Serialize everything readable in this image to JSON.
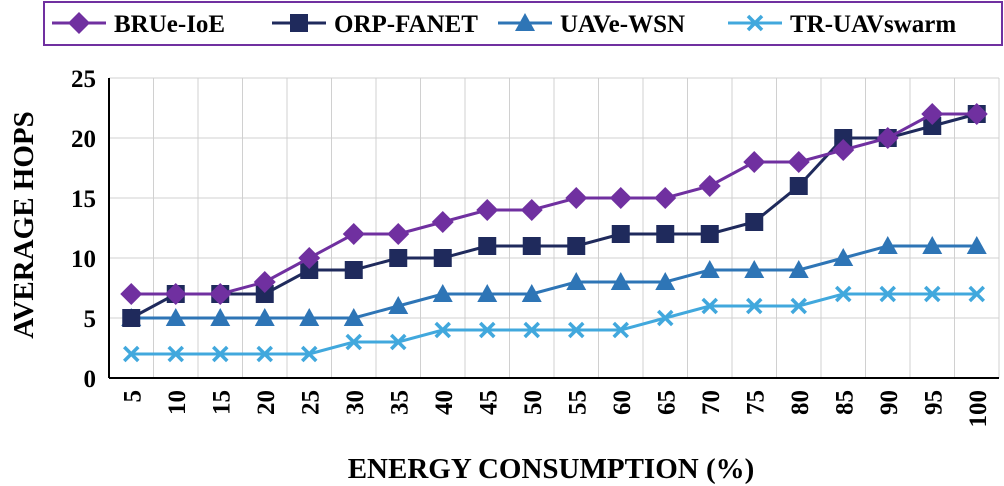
{
  "chart_data": {
    "type": "line",
    "title": "",
    "xlabel": "ENERGY CONSUMPTION (%)",
    "ylabel": "AVERAGE HOPS",
    "categories": [
      "5",
      "10",
      "15",
      "20",
      "25",
      "30",
      "35",
      "40",
      "45",
      "50",
      "55",
      "60",
      "65",
      "70",
      "75",
      "80",
      "85",
      "90",
      "95",
      "100"
    ],
    "ylim": [
      0,
      25
    ],
    "yticks": [
      "0",
      "5",
      "10",
      "15",
      "20",
      "25"
    ],
    "grid": true,
    "legend_position": "top",
    "series": [
      {
        "name": "BRUe-IoE",
        "marker": "diamond",
        "color": "#7030A0",
        "values": [
          7,
          7,
          7,
          8,
          10,
          12,
          12,
          13,
          14,
          14,
          15,
          15,
          15,
          16,
          18,
          18,
          19,
          20,
          22,
          22
        ]
      },
      {
        "name": "ORP-FANET",
        "marker": "square",
        "color": "#1F2A5C",
        "values": [
          5,
          7,
          7,
          7,
          9,
          9,
          10,
          10,
          11,
          11,
          11,
          12,
          12,
          12,
          13,
          16,
          20,
          20,
          21,
          22
        ]
      },
      {
        "name": "UAVe-WSN",
        "marker": "triangle",
        "color": "#2E75B6",
        "values": [
          5,
          5,
          5,
          5,
          5,
          5,
          6,
          7,
          7,
          7,
          8,
          8,
          8,
          9,
          9,
          9,
          10,
          11,
          11,
          11
        ]
      },
      {
        "name": "TR-UAVswarm",
        "marker": "x",
        "color": "#41A8DD",
        "values": [
          2,
          2,
          2,
          2,
          2,
          3,
          3,
          4,
          4,
          4,
          4,
          4,
          5,
          6,
          6,
          6,
          7,
          7,
          7,
          7
        ]
      }
    ]
  }
}
